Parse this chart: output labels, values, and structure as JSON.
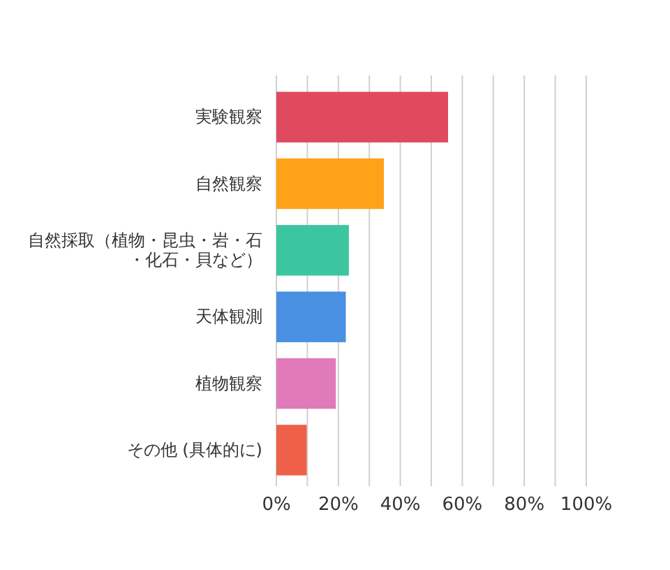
{
  "chart_data": {
    "type": "bar",
    "orientation": "horizontal",
    "categories": [
      "実験観察",
      "自然観察",
      "自然採取（植物・昆虫・岩・石・化石・貝など）",
      "天体観測",
      "植物観察",
      "その他 (具体的に)"
    ],
    "values": [
      55.4,
      34.7,
      23.4,
      22.4,
      19.2,
      9.8
    ],
    "colors": [
      "#e04a5f",
      "#ffa21a",
      "#3cc6a0",
      "#4a90e2",
      "#e07ab9",
      "#ee6148"
    ],
    "xlim": [
      0,
      100
    ],
    "xticks": [
      {
        "value": 0,
        "label": "0%"
      },
      {
        "value": 10,
        "label": null
      },
      {
        "value": 20,
        "label": "20%"
      },
      {
        "value": 30,
        "label": null
      },
      {
        "value": 40,
        "label": "40%"
      },
      {
        "value": 50,
        "label": null
      },
      {
        "value": 60,
        "label": "60%"
      },
      {
        "value": 70,
        "label": null
      },
      {
        "value": 80,
        "label": "80%"
      },
      {
        "value": 90,
        "label": null
      },
      {
        "value": 100,
        "label": "100%"
      }
    ],
    "grid": "x"
  }
}
